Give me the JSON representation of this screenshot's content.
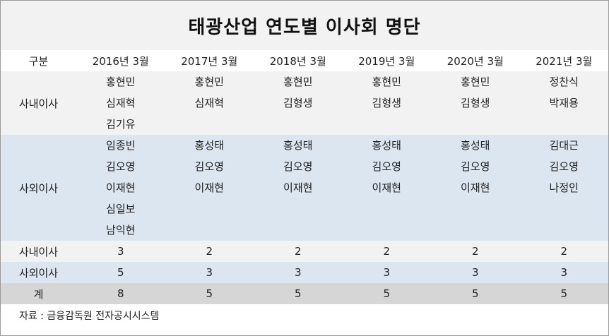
{
  "title": "태광산업 연도별 이사회 명단",
  "header": [
    "구분",
    "2016년 3월",
    "2017년 3월",
    "2018년 3월",
    "2019년 3월",
    "2020년 3월",
    "2021년 3월"
  ],
  "inside_directors": {
    "label": "사내이사",
    "years": [
      [
        "홍현민",
        "심재혁",
        "김기유"
      ],
      [
        "홍현민",
        "심재혁"
      ],
      [
        "홍현민",
        "김형생"
      ],
      [
        "홍현민",
        "김형생"
      ],
      [
        "홍현민",
        "김형생"
      ],
      [
        "정찬식",
        "박재용"
      ]
    ]
  },
  "outside_directors": {
    "label": "사외이사",
    "years": [
      [
        "임종빈",
        "김오영",
        "이재현",
        "심일보",
        "남익현"
      ],
      [
        "홍성태",
        "김오영",
        "이재현"
      ],
      [
        "홍성태",
        "김오영",
        "이재현"
      ],
      [
        "홍성태",
        "김오영",
        "이재현"
      ],
      [
        "홍성태",
        "김오영",
        "이재현"
      ],
      [
        "김대근",
        "김오영",
        "나정인"
      ]
    ]
  },
  "counts": [
    {
      "label": "사내이사",
      "values": [
        "3",
        "2",
        "2",
        "2",
        "2",
        "2"
      ]
    },
    {
      "label": "사외이사",
      "values": [
        "5",
        "3",
        "3",
        "3",
        "3",
        "3"
      ]
    },
    {
      "label": "계",
      "values": [
        "8",
        "5",
        "5",
        "5",
        "5",
        "5"
      ]
    }
  ],
  "source": "자료 : 금융감독원 전자공시시스템",
  "colors": {
    "title_band": "#f2f2f2",
    "inside_band": "#f2f2f2",
    "outside_band": "#dce6f0",
    "total_band": "#d6d6d6"
  }
}
